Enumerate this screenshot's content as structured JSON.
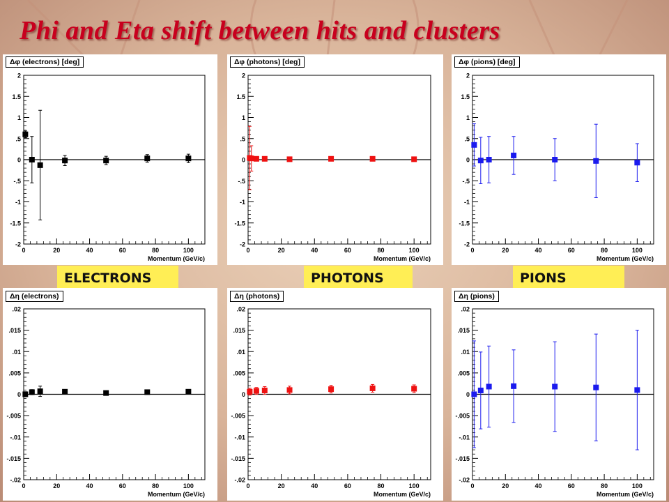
{
  "slide": {
    "title": "Phi and Eta shift between hits and clusters"
  },
  "labels": [
    "ELECTRONS",
    "PHOTONS",
    "PIONS"
  ],
  "colors": {
    "title": "#c8001e",
    "electrons": "#000000",
    "photons": "#ee1111",
    "pions": "#1a1aee",
    "label_bg": "#ffee55"
  },
  "chart_data": [
    {
      "type": "scatter",
      "title": "Δφ (electrons) [deg]",
      "xlabel": "Momentum (GeV/c)",
      "ylabel": "",
      "xlim": [
        0,
        110
      ],
      "ylim": [
        -2,
        2
      ],
      "xticks": [
        0,
        20,
        40,
        60,
        80,
        100
      ],
      "yticks": [
        -2,
        -1.5,
        -1,
        -0.5,
        0,
        0.5,
        1,
        1.5,
        2
      ],
      "color": "#000000",
      "zero_line": true,
      "points": [
        {
          "x": 1,
          "y": 0.6,
          "err": 0.08
        },
        {
          "x": 5,
          "y": 0.0,
          "err": 0.55
        },
        {
          "x": 10,
          "y": -0.13,
          "err": 1.3
        },
        {
          "x": 25,
          "y": -0.02,
          "err": 0.12
        },
        {
          "x": 50,
          "y": -0.02,
          "err": 0.1
        },
        {
          "x": 75,
          "y": 0.03,
          "err": 0.09
        },
        {
          "x": 100,
          "y": 0.03,
          "err": 0.1
        }
      ]
    },
    {
      "type": "scatter",
      "title": "Δφ (photons) [deg]",
      "xlabel": "Momentum (GeV/c)",
      "ylabel": "",
      "xlim": [
        0,
        110
      ],
      "ylim": [
        -2,
        2
      ],
      "xticks": [
        0,
        20,
        40,
        60,
        80,
        100
      ],
      "yticks": [
        -2,
        -1.5,
        -1,
        -0.5,
        0,
        0.5,
        1,
        1.5,
        2
      ],
      "color": "#ee1111",
      "zero_line": true,
      "points": [
        {
          "x": 1,
          "y": 0.04,
          "err": 0.75
        },
        {
          "x": 2,
          "y": 0.03,
          "err": 0.3
        },
        {
          "x": 5,
          "y": 0.02,
          "err": 0.05
        },
        {
          "x": 10,
          "y": 0.02,
          "err": 0.04
        },
        {
          "x": 25,
          "y": 0.01,
          "err": 0.04
        },
        {
          "x": 50,
          "y": 0.02,
          "err": 0.05
        },
        {
          "x": 75,
          "y": 0.02,
          "err": 0.05
        },
        {
          "x": 100,
          "y": 0.01,
          "err": 0.04
        }
      ]
    },
    {
      "type": "scatter",
      "title": "Δφ (pions) [deg]",
      "xlabel": "Momentum (GeV/c)",
      "ylabel": "",
      "xlim": [
        0,
        110
      ],
      "ylim": [
        -2,
        2
      ],
      "xticks": [
        0,
        20,
        40,
        60,
        80,
        100
      ],
      "yticks": [
        -2,
        -1.5,
        -1,
        -0.5,
        0,
        0.5,
        1,
        1.5,
        2
      ],
      "color": "#1a1aee",
      "zero_line": true,
      "points": [
        {
          "x": 1,
          "y": 0.35,
          "err": 0.5
        },
        {
          "x": 5,
          "y": -0.02,
          "err": 0.55
        },
        {
          "x": 10,
          "y": 0.0,
          "err": 0.55
        },
        {
          "x": 25,
          "y": 0.1,
          "err": 0.45
        },
        {
          "x": 50,
          "y": 0.0,
          "err": 0.5
        },
        {
          "x": 75,
          "y": -0.03,
          "err": 0.87
        },
        {
          "x": 100,
          "y": -0.07,
          "err": 0.45
        }
      ]
    },
    {
      "type": "scatter",
      "title": "Δη (electrons)",
      "xlabel": "Momentum (GeV/c)",
      "ylabel": "",
      "xlim": [
        0,
        110
      ],
      "ylim": [
        -0.02,
        0.02
      ],
      "xticks": [
        0,
        20,
        40,
        60,
        80,
        100
      ],
      "yticks": [
        -0.02,
        -0.015,
        -0.01,
        -0.005,
        0,
        0.005,
        0.01,
        0.015,
        0.02
      ],
      "color": "#000000",
      "zero_line": true,
      "points": [
        {
          "x": 1,
          "y": 0.0,
          "err": 0.0006
        },
        {
          "x": 5,
          "y": 0.0005,
          "err": 0.0006
        },
        {
          "x": 10,
          "y": 0.0007,
          "err": 0.0012
        },
        {
          "x": 25,
          "y": 0.0006,
          "err": 0.0004
        },
        {
          "x": 50,
          "y": 0.0003,
          "err": 0.0002
        },
        {
          "x": 75,
          "y": 0.0005,
          "err": 0.0002
        },
        {
          "x": 100,
          "y": 0.0006,
          "err": 0.0002
        }
      ]
    },
    {
      "type": "scatter",
      "title": "Δη (photons)",
      "xlabel": "Momentum (GeV/c)",
      "ylabel": "",
      "xlim": [
        0,
        110
      ],
      "ylim": [
        -0.02,
        0.02
      ],
      "xticks": [
        0,
        20,
        40,
        60,
        80,
        100
      ],
      "yticks": [
        -0.02,
        -0.015,
        -0.01,
        -0.005,
        0,
        0.005,
        0.01,
        0.015,
        0.02
      ],
      "color": "#ee1111",
      "zero_line": true,
      "points": [
        {
          "x": 1,
          "y": 0.0006,
          "err": 0.0008
        },
        {
          "x": 5,
          "y": 0.0008,
          "err": 0.0008
        },
        {
          "x": 10,
          "y": 0.0009,
          "err": 0.0009
        },
        {
          "x": 25,
          "y": 0.001,
          "err": 0.0009
        },
        {
          "x": 50,
          "y": 0.0012,
          "err": 0.0009
        },
        {
          "x": 75,
          "y": 0.0014,
          "err": 0.0009
        },
        {
          "x": 100,
          "y": 0.0013,
          "err": 0.0009
        }
      ]
    },
    {
      "type": "scatter",
      "title": "Δη (pions)",
      "xlabel": "Momentum (GeV/c)",
      "ylabel": "",
      "xlim": [
        0,
        110
      ],
      "ylim": [
        -0.02,
        0.02
      ],
      "xticks": [
        0,
        20,
        40,
        60,
        80,
        100
      ],
      "yticks": [
        -0.02,
        -0.015,
        -0.01,
        -0.005,
        0,
        0.005,
        0.01,
        0.015,
        0.02
      ],
      "color": "#1a1aee",
      "zero_line": true,
      "points": [
        {
          "x": 1,
          "y": 0.0,
          "err": 0.0125
        },
        {
          "x": 5,
          "y": 0.0009,
          "err": 0.009
        },
        {
          "x": 10,
          "y": 0.0018,
          "err": 0.0095
        },
        {
          "x": 25,
          "y": 0.0019,
          "err": 0.0085
        },
        {
          "x": 50,
          "y": 0.0018,
          "err": 0.0105
        },
        {
          "x": 75,
          "y": 0.0016,
          "err": 0.0125
        },
        {
          "x": 100,
          "y": 0.001,
          "err": 0.014
        }
      ]
    }
  ]
}
